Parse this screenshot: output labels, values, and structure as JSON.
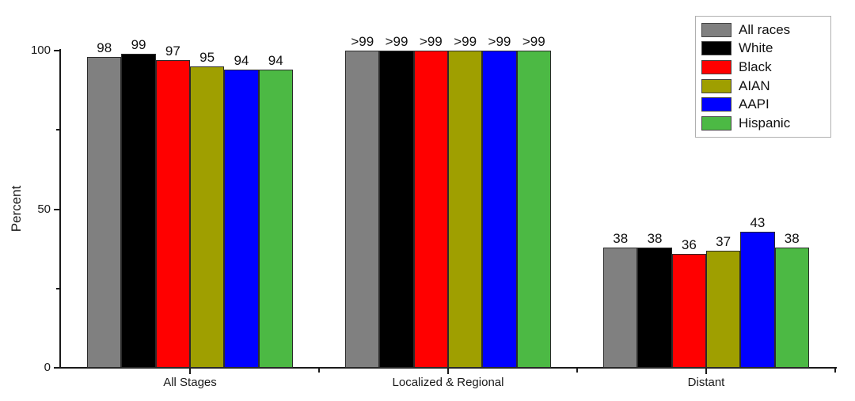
{
  "chart_data": {
    "type": "bar",
    "title": "",
    "xlabel": "",
    "ylabel": "Percent",
    "ylim": [
      0,
      100
    ],
    "yticks_major": [
      0,
      50,
      100
    ],
    "yticks_minor": [
      25,
      75
    ],
    "grid": false,
    "legend_position": "top-right",
    "categories": [
      "All Stages",
      "Localized & Regional",
      "Distant"
    ],
    "series": [
      {
        "name": "All races",
        "color": "#808080",
        "values": [
          98,
          100,
          38
        ],
        "labels": [
          "98",
          ">99",
          "38"
        ]
      },
      {
        "name": "White",
        "color": "#000000",
        "values": [
          99,
          100,
          38
        ],
        "labels": [
          "99",
          ">99",
          "38"
        ]
      },
      {
        "name": "Black",
        "color": "#FF0000",
        "values": [
          97,
          100,
          36
        ],
        "labels": [
          "97",
          ">99",
          "36"
        ]
      },
      {
        "name": "AIAN",
        "color": "#9F9F00",
        "values": [
          95,
          100,
          37
        ],
        "labels": [
          "95",
          ">99",
          "37"
        ]
      },
      {
        "name": "AAPI",
        "color": "#0000FF",
        "values": [
          94,
          100,
          43
        ],
        "labels": [
          "94",
          ">99",
          "43"
        ]
      },
      {
        "name": "Hispanic",
        "color": "#4CB944",
        "values": [
          94,
          100,
          38
        ],
        "labels": [
          "94",
          ">99",
          "38"
        ]
      }
    ],
    "colors": {
      "axis": "#1a1a1a",
      "bar_outline": "#2b2b2b",
      "legend_border": "#b0b0b0",
      "background": "#ffffff"
    }
  }
}
